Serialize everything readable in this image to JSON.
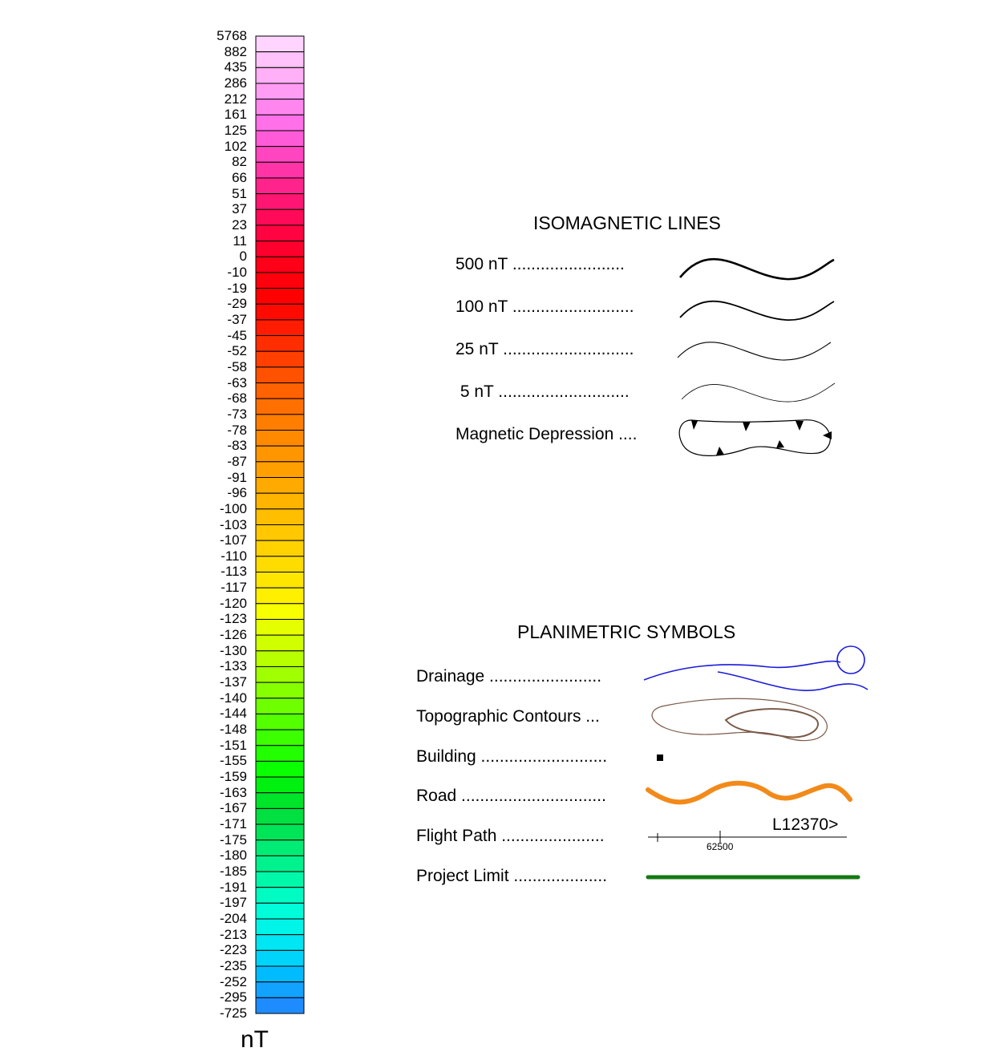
{
  "colorbar": {
    "unit": "nT",
    "labels": [
      "5768",
      "882",
      "435",
      "286",
      "212",
      "161",
      "125",
      "102",
      "82",
      "66",
      "51",
      "37",
      "23",
      "11",
      "0",
      "-10",
      "-19",
      "-29",
      "-37",
      "-45",
      "-52",
      "-58",
      "-63",
      "-68",
      "-73",
      "-78",
      "-83",
      "-87",
      "-91",
      "-96",
      "-100",
      "-103",
      "-107",
      "-110",
      "-113",
      "-117",
      "-120",
      "-123",
      "-126",
      "-130",
      "-133",
      "-137",
      "-140",
      "-144",
      "-148",
      "-151",
      "-155",
      "-159",
      "-163",
      "-167",
      "-171",
      "-175",
      "-180",
      "-185",
      "-191",
      "-197",
      "-204",
      "-213",
      "-223",
      "-235",
      "-252",
      "-295",
      "-725"
    ],
    "colors": [
      "#ffd4ff",
      "#ffc2fb",
      "#ffb0f7",
      "#ff9cf3",
      "#ff86ef",
      "#ff70e9",
      "#ff5ad8",
      "#ff46c0",
      "#ff34a6",
      "#ff248c",
      "#ff1672",
      "#ff0a58",
      "#ff0440",
      "#ff002c",
      "#ff0018",
      "#ff000c",
      "#ff0000",
      "#ff0a00",
      "#ff1c00",
      "#ff2e00",
      "#ff4000",
      "#ff5200",
      "#ff6200",
      "#ff7000",
      "#ff7e00",
      "#ff8a00",
      "#ff9600",
      "#ffa000",
      "#ffaa00",
      "#ffb400",
      "#ffbe00",
      "#ffc800",
      "#ffd200",
      "#ffdc00",
      "#ffe600",
      "#fff000",
      "#f8ff00",
      "#e6ff00",
      "#d0ff00",
      "#b8ff00",
      "#a0ff00",
      "#86ff00",
      "#6eff00",
      "#54ff00",
      "#3cff00",
      "#22ff00",
      "#0aff00",
      "#00f010",
      "#00e42a",
      "#00e040",
      "#00e458",
      "#00ec74",
      "#00f28e",
      "#00f8a8",
      "#00fcc2",
      "#00fcd8",
      "#00f4e8",
      "#00e6f2",
      "#00d4fa",
      "#00bcff",
      "#12a2ff",
      "#1e8cff"
    ]
  },
  "isomagnetic": {
    "title": "ISOMAGNETIC LINES",
    "items": [
      "500 nT ........................",
      "100 nT ..........................",
      "25 nT ............................",
      " 5 nT ............................",
      "Magnetic Depression ...."
    ]
  },
  "planimetric": {
    "title": "PLANIMETRIC SYMBOLS",
    "items": [
      "Drainage ........................",
      "Topographic Contours ...",
      "Building ...........................",
      "Road ...............................",
      "Flight Path ......................",
      "Project Limit ...................."
    ],
    "flight_line_label": "L12370>",
    "fiducial_label": "62500",
    "colors": {
      "drainage": "#1a1adc",
      "contours": "#7a5a48",
      "road": "#f28a1a",
      "project_limit": "#137a13"
    }
  }
}
